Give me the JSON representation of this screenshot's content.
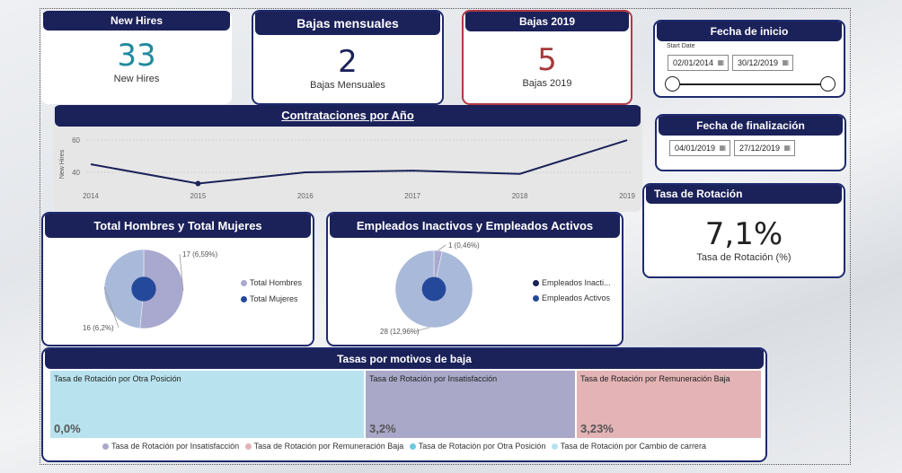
{
  "kpis": {
    "new_hires": {
      "title": "New Hires",
      "value": "33",
      "label": "New Hires",
      "color": "#1f8a9e"
    },
    "bajas_mensuales": {
      "title": "Bajas mensuales",
      "value": "2",
      "label": "Bajas Mensuales",
      "color": "#1b2159"
    },
    "bajas_2019": {
      "title": "Bajas 2019",
      "value": "5",
      "label": "Bajas 2019",
      "color": "#a53a3a"
    },
    "tasa_rotacion": {
      "title": "Tasa de Rotación",
      "value": "7,1%",
      "label": "Tasa de Rotación (%)"
    }
  },
  "fecha_inicio": {
    "title": "Fecha de inicio",
    "caption": "Start Date",
    "start": "02/01/2014",
    "end": "30/12/2019",
    "slider_range": [
      0,
      1
    ]
  },
  "fecha_fin": {
    "title": "Fecha de finalización",
    "start": "04/01/2019",
    "end": "27/12/2019"
  },
  "contrataciones": {
    "title": "Contrataciones por Año",
    "ylabel": "New Hires",
    "y_ticks": [
      "60",
      "40"
    ],
    "x_ticks": [
      "2014",
      "2015",
      "2016",
      "2017",
      "2018",
      "2019"
    ]
  },
  "gender_chart": {
    "title": "Total Hombres y Total Mujeres",
    "label_top": "17 (6,59%)",
    "label_bottom": "16 (6,2%)",
    "legend": [
      {
        "label": "Total Hombres",
        "color": "#a9a8cf"
      },
      {
        "label": "Total Mujeres",
        "color": "#25499a"
      }
    ]
  },
  "active_chart": {
    "title": "Empleados Inactivos y Empleados Activos",
    "label_top": "1 (0,46%)",
    "label_bottom": "28 (12,96%)",
    "legend": [
      {
        "label": "Empleados Inacti...",
        "color": "#1b2159"
      },
      {
        "label": "Empleados Activos",
        "color": "#25499a"
      }
    ]
  },
  "tasas": {
    "title": "Tasas por motivos de baja",
    "cells": [
      {
        "title": "Tasa de Rotación por Otra Posición",
        "value": "0,0%",
        "color": "#b8e3ee"
      },
      {
        "title": "Tasa de Rotación por Insatisfacción",
        "value": "3,2%",
        "color": "#a9a8c8"
      },
      {
        "title": "Tasa de Rotación por Remuneración Baja",
        "value": "3,23%",
        "color": "#e3b3b5"
      }
    ],
    "legend": [
      {
        "label": "Tasa de Rotación por Insatisfacción",
        "color": "#a9a8c8"
      },
      {
        "label": "Tasa de Rotación por Remuneración Baja",
        "color": "#e3b3b5"
      },
      {
        "label": "Tasa de Rotación por Otra Posición",
        "color": "#6cc8de"
      },
      {
        "label": "Tasa de Rotación por Cambio de carrera",
        "color": "#b8e3ee"
      }
    ]
  },
  "chart_data": [
    {
      "type": "line",
      "title": "Contrataciones por Año",
      "xlabel": "",
      "ylabel": "New Hires",
      "x": [
        2014,
        2015,
        2016,
        2017,
        2018,
        2019
      ],
      "series": [
        {
          "values": [
            45,
            33,
            40,
            41,
            39,
            60
          ]
        }
      ],
      "ylim": [
        26,
        64
      ],
      "grid": true,
      "highlight_index": 1,
      "color": "#1b2159"
    },
    {
      "type": "pie",
      "title": "Total Hombres y Total Mujeres",
      "labels": [
        "Total Hombres",
        "Total Mujeres"
      ],
      "values": [
        17,
        16
      ],
      "value_labels": [
        "17 (6,59%)",
        "16 (6,2%)"
      ],
      "colors": [
        "#a9a8cf",
        "#a9b9da"
      ]
    },
    {
      "type": "pie",
      "title": "Empleados Inactivos y Empleados Activos",
      "labels": [
        "Empleados Inactivos",
        "Empleados Activos"
      ],
      "values": [
        1,
        28
      ],
      "value_labels": [
        "1 (0,46%)",
        "28 (12,96%)"
      ],
      "colors": [
        "#a9a8cf",
        "#a9b9da"
      ]
    }
  ]
}
